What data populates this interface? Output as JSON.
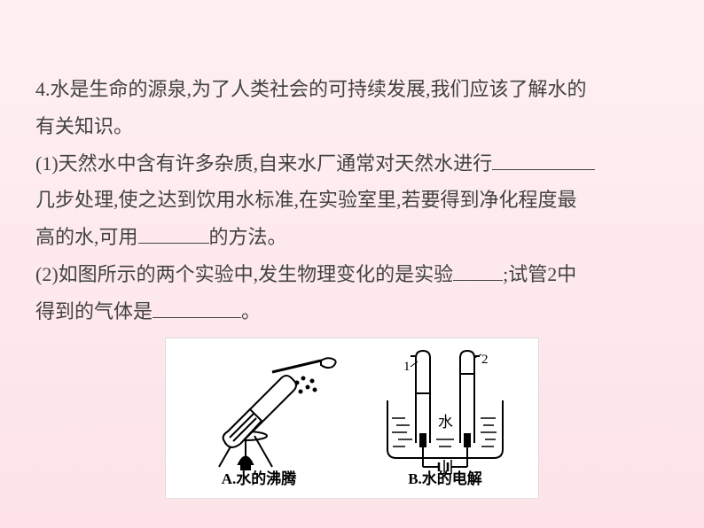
{
  "question": {
    "number": "4",
    "stem_line1": ".水是生命的源泉,为了人类社会的可持续发展,我们应该了解水的",
    "stem_line2": "有关知识。",
    "part1_prefix": "(1)天然水中含有许多杂质,自来水厂通常对天然水进行",
    "part1_line2a": "几步处理,使之达到饮用水标准,在实验室里,若要得到净化程度最",
    "part1_line3a": "高的水,可用",
    "part1_line3b": "的方法。",
    "part2_prefix": "(2)如图所示的两个实验中,发生物理变化的是实验",
    "part2_mid": ";试管2中",
    "part2_line2a": "得到的气体是",
    "part2_line2b": "。",
    "blank_widths": {
      "b1": 116,
      "b2": 80,
      "b3": 56,
      "b4": 100
    }
  },
  "diagram": {
    "captionA": "A.水的沸腾",
    "captionB": "B.水的电解",
    "labelWater": "水",
    "label1": "1",
    "label2": "2",
    "colors": {
      "stroke": "#000000",
      "fill_bg": "#ffffff"
    }
  }
}
